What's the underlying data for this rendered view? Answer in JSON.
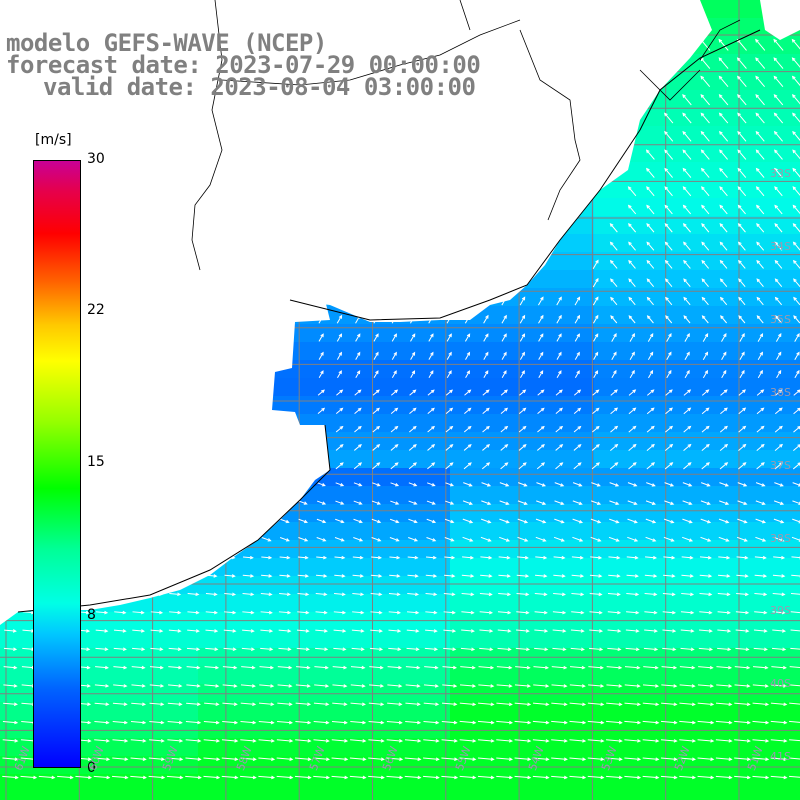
{
  "title": {
    "line1": "modelo GEFS-WAVE (NCEP)",
    "line2": "forecast date: 2023-07-29 00:00:00",
    "line3": "valid date: 2023-08-04 03:00:00"
  },
  "colorbar": {
    "unit": "[m/s]",
    "ticks": [
      "30",
      "22",
      "15",
      "8",
      "0"
    ],
    "tick_values": [
      30,
      22,
      15,
      8,
      0
    ],
    "colors": [
      "#0000ff",
      "#00c8ff",
      "#00ff00",
      "#ffff00",
      "#ff0000",
      "#c80096"
    ]
  },
  "map": {
    "lat_labels": [
      "33S",
      "34S",
      "35S",
      "36S",
      "37S",
      "38S",
      "39S",
      "40S",
      "41S"
    ],
    "lon_labels": [
      "61W",
      "60W",
      "59W",
      "58W",
      "57W",
      "56W",
      "55W",
      "54W",
      "53W",
      "52W",
      "51W"
    ],
    "land_color": "#ffffff",
    "grid_color": "#808080",
    "arrow_color": "#ffffff"
  }
}
